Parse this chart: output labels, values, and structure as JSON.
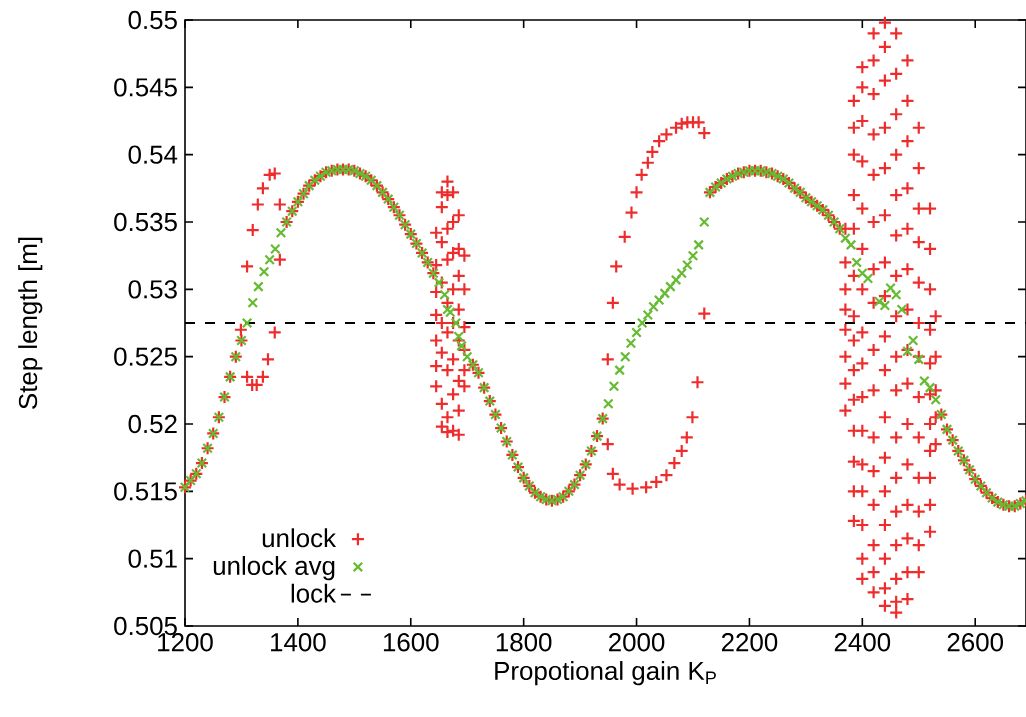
{
  "chart_data": {
    "type": "scatter",
    "xlabel": "Propotional gain K$_{P}$",
    "ylabel": "Step length [m]",
    "xlim": [
      1200,
      2690
    ],
    "ylim": [
      0.505,
      0.55
    ],
    "xticks": [
      1200,
      1400,
      1600,
      1800,
      2000,
      2200,
      2400,
      2600
    ],
    "yticks": [
      0.505,
      0.51,
      0.515,
      0.52,
      0.525,
      0.53,
      0.535,
      0.54,
      0.545,
      0.55
    ],
    "grid": false,
    "legend": "bottom left",
    "series": [
      {
        "name": "unlock",
        "color": "#ee2c2c",
        "marker": "plus",
        "x": [
          1200,
          1210,
          1220,
          1230,
          1240,
          1250,
          1260,
          1270,
          1280,
          1290,
          1300,
          1299,
          1310,
          1310,
          1319,
          1320,
          1327,
          1329,
          1338,
          1338,
          1347,
          1350,
          1359,
          1359,
          1368,
          1368,
          1380,
          1390,
          1400,
          1410,
          1420,
          1430,
          1440,
          1450,
          1460,
          1470,
          1480,
          1490,
          1500,
          1510,
          1520,
          1530,
          1540,
          1550,
          1560,
          1570,
          1580,
          1590,
          1600,
          1610,
          1620,
          1630,
          1640,
          1645,
          1645,
          1645,
          1645,
          1645,
          1645,
          1645,
          1655,
          1655,
          1655,
          1655,
          1655,
          1655,
          1655,
          1655,
          1665,
          1665,
          1665,
          1665,
          1665,
          1665,
          1665,
          1665,
          1665,
          1675,
          1675,
          1675,
          1675,
          1675,
          1675,
          1675,
          1675,
          1685,
          1685,
          1685,
          1685,
          1685,
          1685,
          1685,
          1685,
          1695,
          1695,
          1695,
          1695,
          1695,
          1695,
          1710,
          1720,
          1730,
          1740,
          1750,
          1760,
          1770,
          1780,
          1790,
          1800,
          1810,
          1820,
          1830,
          1840,
          1850,
          1860,
          1870,
          1880,
          1890,
          1900,
          1910,
          1920,
          1930,
          1940,
          1949,
          1949,
          1958,
          1958,
          1964,
          1970,
          1979,
          1991,
          1993,
          2000,
          2009,
          2017,
          2020,
          2028,
          2035,
          2040,
          2053,
          2053,
          2067,
          2070,
          2080,
          2080,
          2089,
          2090,
          2099,
          2100,
          2108,
          2110,
          2120,
          2120,
          2130,
          2140,
          2150,
          2160,
          2170,
          2180,
          2190,
          2200,
          2210,
          2220,
          2230,
          2240,
          2250,
          2260,
          2270,
          2280,
          2290,
          2300,
          2310,
          2320,
          2330,
          2340,
          2350,
          2360,
          2370,
          2370,
          2370,
          2370,
          2370,
          2370,
          2370,
          2370,
          2385,
          2385,
          2385,
          2385,
          2385,
          2385,
          2385,
          2385,
          2385,
          2385,
          2385,
          2385,
          2385,
          2385,
          2400,
          2400,
          2400,
          2400,
          2400,
          2400,
          2400,
          2400,
          2400,
          2400,
          2400,
          2400,
          2400,
          2400,
          2400,
          2400,
          2420,
          2420,
          2420,
          2420,
          2420,
          2420,
          2420,
          2420,
          2420,
          2420,
          2420,
          2420,
          2420,
          2420,
          2420,
          2420,
          2440,
          2440,
          2440,
          2440,
          2440,
          2440,
          2440,
          2440,
          2440,
          2440,
          2440,
          2440,
          2440,
          2440,
          2440,
          2440,
          2440,
          2460,
          2460,
          2460,
          2460,
          2460,
          2460,
          2460,
          2460,
          2460,
          2460,
          2460,
          2460,
          2460,
          2460,
          2460,
          2460,
          2460,
          2480,
          2480,
          2480,
          2480,
          2480,
          2480,
          2480,
          2480,
          2480,
          2480,
          2480,
          2480,
          2480,
          2480,
          2480,
          2500,
          2500,
          2500,
          2500,
          2500,
          2500,
          2500,
          2500,
          2500,
          2500,
          2500,
          2500,
          2500,
          2520,
          2520,
          2520,
          2520,
          2520,
          2520,
          2520,
          2520,
          2520,
          2520,
          2520,
          2530,
          2530,
          2530,
          2530,
          2530,
          2540,
          2550,
          2560,
          2570,
          2580,
          2590,
          2600,
          2610,
          2620,
          2630,
          2640,
          2650,
          2660,
          2670,
          2680,
          2690
        ],
        "values": [
          0.5153,
          0.5158,
          0.5163,
          0.5171,
          0.5182,
          0.5193,
          0.5205,
          0.522,
          0.5235,
          0.525,
          0.5262,
          0.527,
          0.5317,
          0.5235,
          0.5229,
          0.5344,
          0.5229,
          0.5363,
          0.5375,
          0.5235,
          0.5248,
          0.5385,
          0.5386,
          0.5268,
          0.5363,
          0.5322,
          0.535,
          0.5358,
          0.5365,
          0.5371,
          0.5377,
          0.5381,
          0.5384,
          0.5387,
          0.5388,
          0.5389,
          0.5389,
          0.5389,
          0.5388,
          0.5386,
          0.5384,
          0.5381,
          0.5377,
          0.5372,
          0.5367,
          0.5361,
          0.5355,
          0.5348,
          0.5341,
          0.5334,
          0.5327,
          0.532,
          0.5312,
          0.5342,
          0.5318,
          0.5298,
          0.5281,
          0.5262,
          0.5243,
          0.5228,
          0.5372,
          0.5361,
          0.5335,
          0.5305,
          0.5275,
          0.5253,
          0.5215,
          0.5198,
          0.538,
          0.537,
          0.5345,
          0.5322,
          0.529,
          0.5268,
          0.524,
          0.5205,
          0.5194,
          0.5372,
          0.535,
          0.5327,
          0.53,
          0.5275,
          0.5248,
          0.5222,
          0.5195,
          0.5355,
          0.533,
          0.531,
          0.5285,
          0.5262,
          0.5232,
          0.521,
          0.5192,
          0.5325,
          0.53,
          0.5272,
          0.5255,
          0.524,
          0.5228,
          0.5244,
          0.5238,
          0.5227,
          0.5217,
          0.5207,
          0.5197,
          0.5187,
          0.5177,
          0.5168,
          0.516,
          0.5154,
          0.5149,
          0.5146,
          0.5144,
          0.5143,
          0.5144,
          0.5146,
          0.515,
          0.5155,
          0.5162,
          0.517,
          0.518,
          0.5191,
          0.5204,
          0.5248,
          0.5185,
          0.529,
          0.5163,
          0.5317,
          0.5155,
          0.5339,
          0.5357,
          0.5152,
          0.5372,
          0.5385,
          0.5153,
          0.5394,
          0.5402,
          0.5157,
          0.541,
          0.5415,
          0.5162,
          0.5171,
          0.542,
          0.5423,
          0.518,
          0.519,
          0.5424,
          0.5205,
          0.5424,
          0.5231,
          0.5424,
          0.5416,
          0.5282,
          0.5372,
          0.5376,
          0.5379,
          0.5382,
          0.5384,
          0.5386,
          0.5387,
          0.5388,
          0.5388,
          0.5388,
          0.5387,
          0.5386,
          0.5384,
          0.5382,
          0.5379,
          0.5375,
          0.5372,
          0.5368,
          0.5365,
          0.5362,
          0.5359,
          0.5355,
          0.535,
          0.5345,
          0.5345,
          0.532,
          0.53,
          0.5285,
          0.527,
          0.525,
          0.523,
          0.521,
          0.544,
          0.542,
          0.54,
          0.537,
          0.5345,
          0.531,
          0.528,
          0.5262,
          0.524,
          0.5218,
          0.5195,
          0.5172,
          0.515,
          0.5128,
          0.5465,
          0.545,
          0.5425,
          0.5395,
          0.536,
          0.533,
          0.53,
          0.5268,
          0.5245,
          0.522,
          0.5195,
          0.517,
          0.515,
          0.5125,
          0.51,
          0.5085,
          0.549,
          0.547,
          0.5445,
          0.5415,
          0.5385,
          0.535,
          0.5315,
          0.529,
          0.5255,
          0.5225,
          0.519,
          0.5165,
          0.514,
          0.511,
          0.509,
          0.5075,
          0.5498,
          0.548,
          0.5455,
          0.542,
          0.539,
          0.5355,
          0.532,
          0.5295,
          0.5265,
          0.524,
          0.5205,
          0.5175,
          0.515,
          0.5125,
          0.51,
          0.5078,
          0.5065,
          0.549,
          0.546,
          0.543,
          0.54,
          0.537,
          0.534,
          0.531,
          0.528,
          0.525,
          0.5225,
          0.519,
          0.516,
          0.5135,
          0.511,
          0.5085,
          0.5068,
          0.506,
          0.547,
          0.544,
          0.541,
          0.5375,
          0.5345,
          0.5315,
          0.5285,
          0.5255,
          0.523,
          0.52,
          0.517,
          0.514,
          0.5115,
          0.509,
          0.507,
          0.542,
          0.539,
          0.536,
          0.5335,
          0.5305,
          0.5275,
          0.525,
          0.522,
          0.519,
          0.516,
          0.5135,
          0.511,
          0.509,
          0.536,
          0.533,
          0.53,
          0.527,
          0.5245,
          0.5222,
          0.52,
          0.518,
          0.516,
          0.514,
          0.512,
          0.528,
          0.525,
          0.5225,
          0.5205,
          0.5185,
          0.5207,
          0.5196,
          0.5188,
          0.518,
          0.5173,
          0.5166,
          0.5159,
          0.5154,
          0.5149,
          0.5145,
          0.5142,
          0.514,
          0.5139,
          0.5139,
          0.5141,
          0.5143
        ]
      },
      {
        "name": "unlock avg",
        "color": "#66bb33",
        "marker": "cross",
        "x": [
          1200,
          1210,
          1220,
          1230,
          1240,
          1250,
          1260,
          1270,
          1280,
          1290,
          1300,
          1310,
          1320,
          1330,
          1340,
          1350,
          1360,
          1370,
          1380,
          1390,
          1400,
          1410,
          1420,
          1430,
          1440,
          1450,
          1460,
          1470,
          1480,
          1490,
          1500,
          1510,
          1520,
          1530,
          1540,
          1550,
          1560,
          1570,
          1580,
          1590,
          1600,
          1610,
          1620,
          1630,
          1640,
          1650,
          1660,
          1665,
          1670,
          1680,
          1685,
          1690,
          1700,
          1710,
          1720,
          1730,
          1740,
          1750,
          1760,
          1770,
          1780,
          1790,
          1800,
          1810,
          1820,
          1830,
          1840,
          1850,
          1860,
          1870,
          1880,
          1890,
          1900,
          1910,
          1920,
          1930,
          1940,
          1950,
          1960,
          1970,
          1980,
          1990,
          2000,
          2010,
          2020,
          2030,
          2040,
          2050,
          2060,
          2070,
          2080,
          2090,
          2100,
          2110,
          2120,
          2130,
          2140,
          2150,
          2160,
          2170,
          2180,
          2190,
          2200,
          2210,
          2220,
          2230,
          2240,
          2250,
          2260,
          2270,
          2280,
          2290,
          2300,
          2310,
          2320,
          2330,
          2340,
          2350,
          2360,
          2370,
          2380,
          2390,
          2400,
          2410,
          2430,
          2440,
          2450,
          2460,
          2470,
          2480,
          2490,
          2500,
          2510,
          2520,
          2530,
          2540,
          2550,
          2560,
          2570,
          2580,
          2590,
          2600,
          2610,
          2620,
          2630,
          2640,
          2650,
          2660,
          2670,
          2680,
          2690
        ],
        "values": [
          0.5153,
          0.5158,
          0.5163,
          0.5171,
          0.5182,
          0.5193,
          0.5205,
          0.522,
          0.5235,
          0.525,
          0.5262,
          0.5275,
          0.529,
          0.5302,
          0.5313,
          0.5322,
          0.533,
          0.5342,
          0.535,
          0.5358,
          0.5365,
          0.5371,
          0.5377,
          0.5381,
          0.5384,
          0.5387,
          0.5388,
          0.5389,
          0.5389,
          0.5389,
          0.5388,
          0.5386,
          0.5384,
          0.5381,
          0.5377,
          0.5372,
          0.5367,
          0.5361,
          0.5355,
          0.5348,
          0.5341,
          0.5334,
          0.5327,
          0.532,
          0.5312,
          0.5305,
          0.5296,
          0.5285,
          0.5283,
          0.5275,
          0.5265,
          0.5258,
          0.525,
          0.5244,
          0.5238,
          0.5227,
          0.5217,
          0.5207,
          0.5197,
          0.5187,
          0.5177,
          0.5168,
          0.516,
          0.5154,
          0.5149,
          0.5146,
          0.5144,
          0.5143,
          0.5144,
          0.5146,
          0.515,
          0.5155,
          0.5162,
          0.517,
          0.518,
          0.5191,
          0.5204,
          0.5215,
          0.5228,
          0.524,
          0.525,
          0.526,
          0.5268,
          0.5275,
          0.5281,
          0.5287,
          0.5292,
          0.5297,
          0.5302,
          0.5307,
          0.5312,
          0.5318,
          0.5325,
          0.5333,
          0.535,
          0.5372,
          0.5376,
          0.5379,
          0.5382,
          0.5384,
          0.5386,
          0.5387,
          0.5388,
          0.5388,
          0.5388,
          0.5387,
          0.5386,
          0.5384,
          0.5382,
          0.5379,
          0.5375,
          0.5372,
          0.5368,
          0.5365,
          0.5362,
          0.5359,
          0.5355,
          0.535,
          0.5345,
          0.5338,
          0.5333,
          0.532,
          0.5312,
          0.5308,
          0.5291,
          0.5288,
          0.5301,
          0.5296,
          0.5285,
          0.5254,
          0.5262,
          0.5248,
          0.5232,
          0.5227,
          0.5218,
          0.5207,
          0.5196,
          0.5188,
          0.518,
          0.5173,
          0.5166,
          0.5159,
          0.5154,
          0.5149,
          0.5145,
          0.5142,
          0.514,
          0.5139,
          0.5139,
          0.5141,
          0.5143
        ]
      }
    ],
    "ref_lines": [
      {
        "axis": "y",
        "value": 0.5275,
        "label": "lock",
        "color": "#000000",
        "line_style": "dashed"
      }
    ]
  }
}
